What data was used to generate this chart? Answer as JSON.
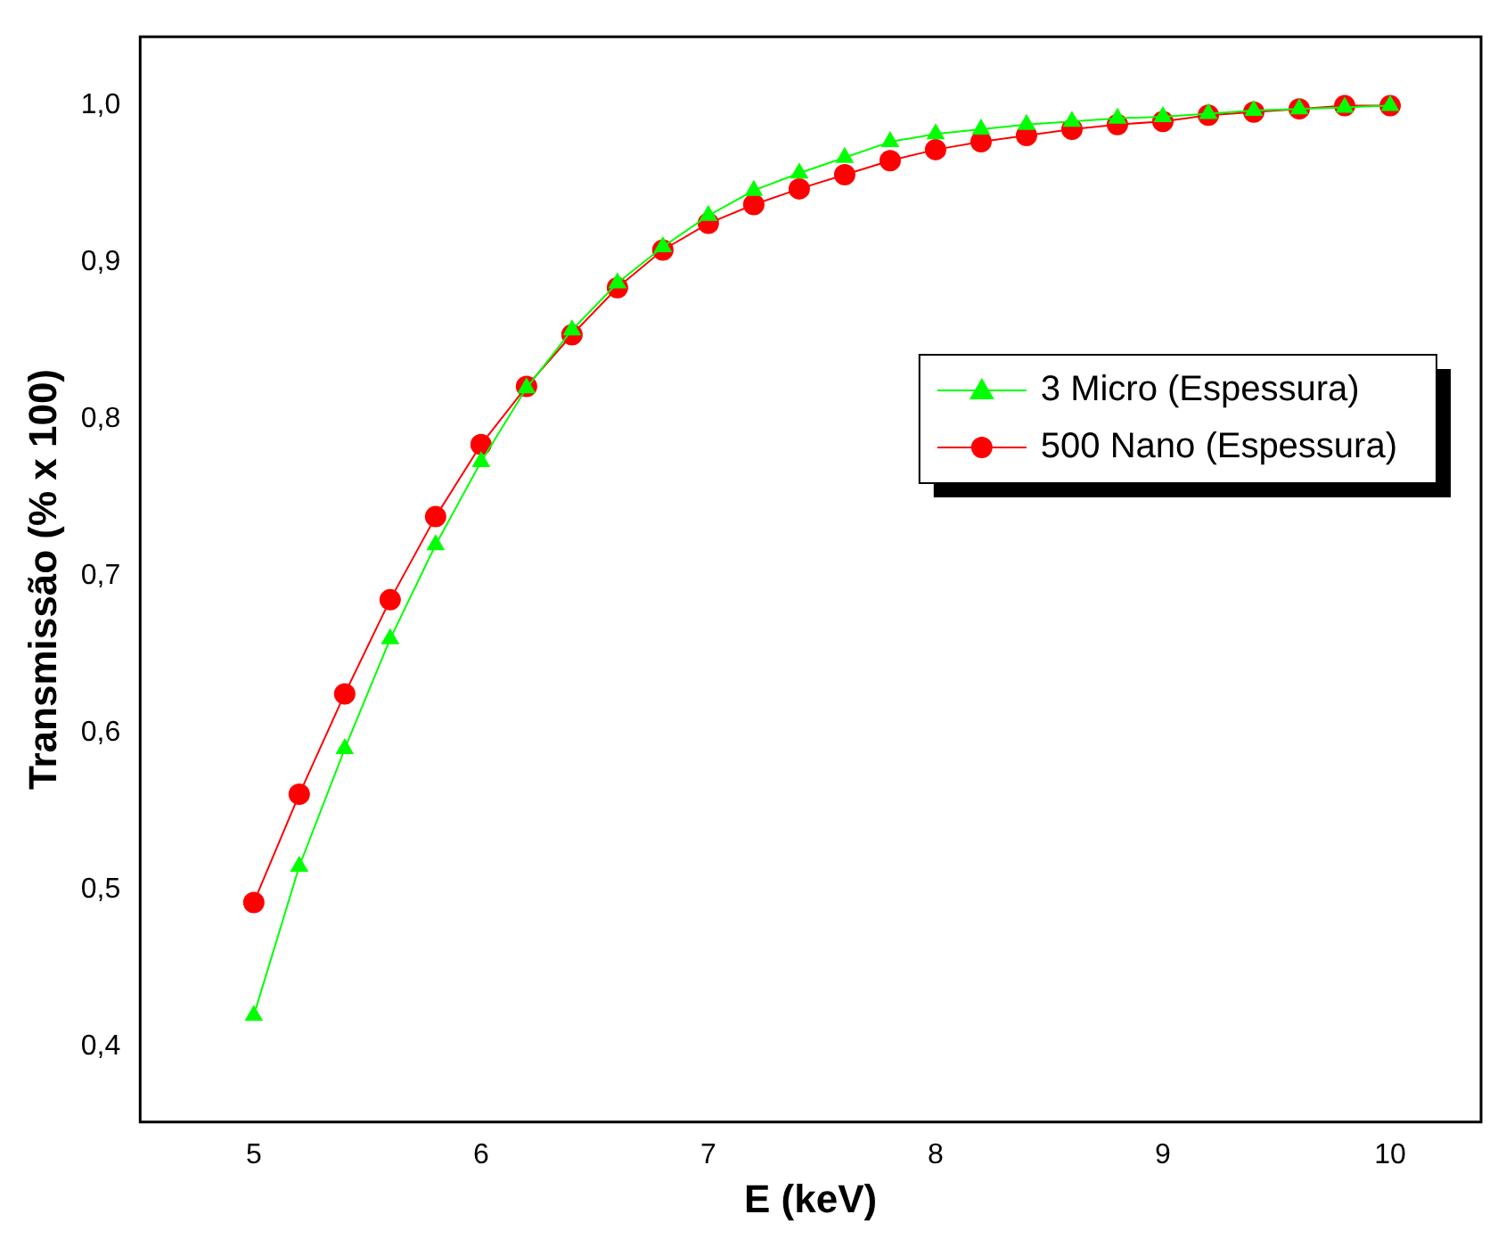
{
  "chart_data": {
    "type": "line",
    "xlabel": "E (keV)",
    "ylabel": "Transmissão (% x 100)",
    "x": [
      5,
      5.2,
      5.4,
      5.6,
      5.8,
      6,
      6.2,
      6.4,
      6.6,
      6.8,
      7,
      7.2,
      7.4,
      7.6,
      7.8,
      8,
      8.2,
      8.4,
      8.6,
      8.8,
      9,
      9.2,
      9.4,
      9.6,
      9.8,
      10
    ],
    "series": [
      {
        "name": "3 Micro (Espessura)",
        "color": "#00ff00",
        "marker": "triangle",
        "values": [
          0.42,
          0.515,
          0.59,
          0.66,
          0.72,
          0.773,
          0.82,
          0.857,
          0.887,
          0.91,
          0.93,
          0.946,
          0.957,
          0.967,
          0.977,
          0.982,
          0.985,
          0.988,
          0.99,
          0.992,
          0.993,
          0.995,
          0.997,
          0.998,
          0.999,
          1.0
        ]
      },
      {
        "name": "500 Nano (Espessura)",
        "color": "#ff0000",
        "marker": "circle",
        "values": [
          0.492,
          0.561,
          0.625,
          0.685,
          0.738,
          0.784,
          0.821,
          0.854,
          0.884,
          0.908,
          0.925,
          0.937,
          0.947,
          0.956,
          0.965,
          0.972,
          0.977,
          0.981,
          0.985,
          0.988,
          0.99,
          0.994,
          0.996,
          0.998,
          1.0,
          1.0
        ]
      }
    ],
    "xlim": [
      4.5,
      10.4
    ],
    "xticks": [
      5,
      6,
      7,
      8,
      9,
      10
    ],
    "ylim": [
      0.352,
      1.044
    ],
    "yticks": [
      {
        "value": 0.4,
        "label": "0,4"
      },
      {
        "value": 0.5,
        "label": "0,5"
      },
      {
        "value": 0.6,
        "label": "0,6"
      },
      {
        "value": 0.7,
        "label": "0,7"
      },
      {
        "value": 0.8,
        "label": "0,8"
      },
      {
        "value": 0.9,
        "label": "0,9"
      },
      {
        "value": 1.0,
        "label": "1,0"
      }
    ],
    "grid": false,
    "legend": "right",
    "line_style": "solid"
  }
}
